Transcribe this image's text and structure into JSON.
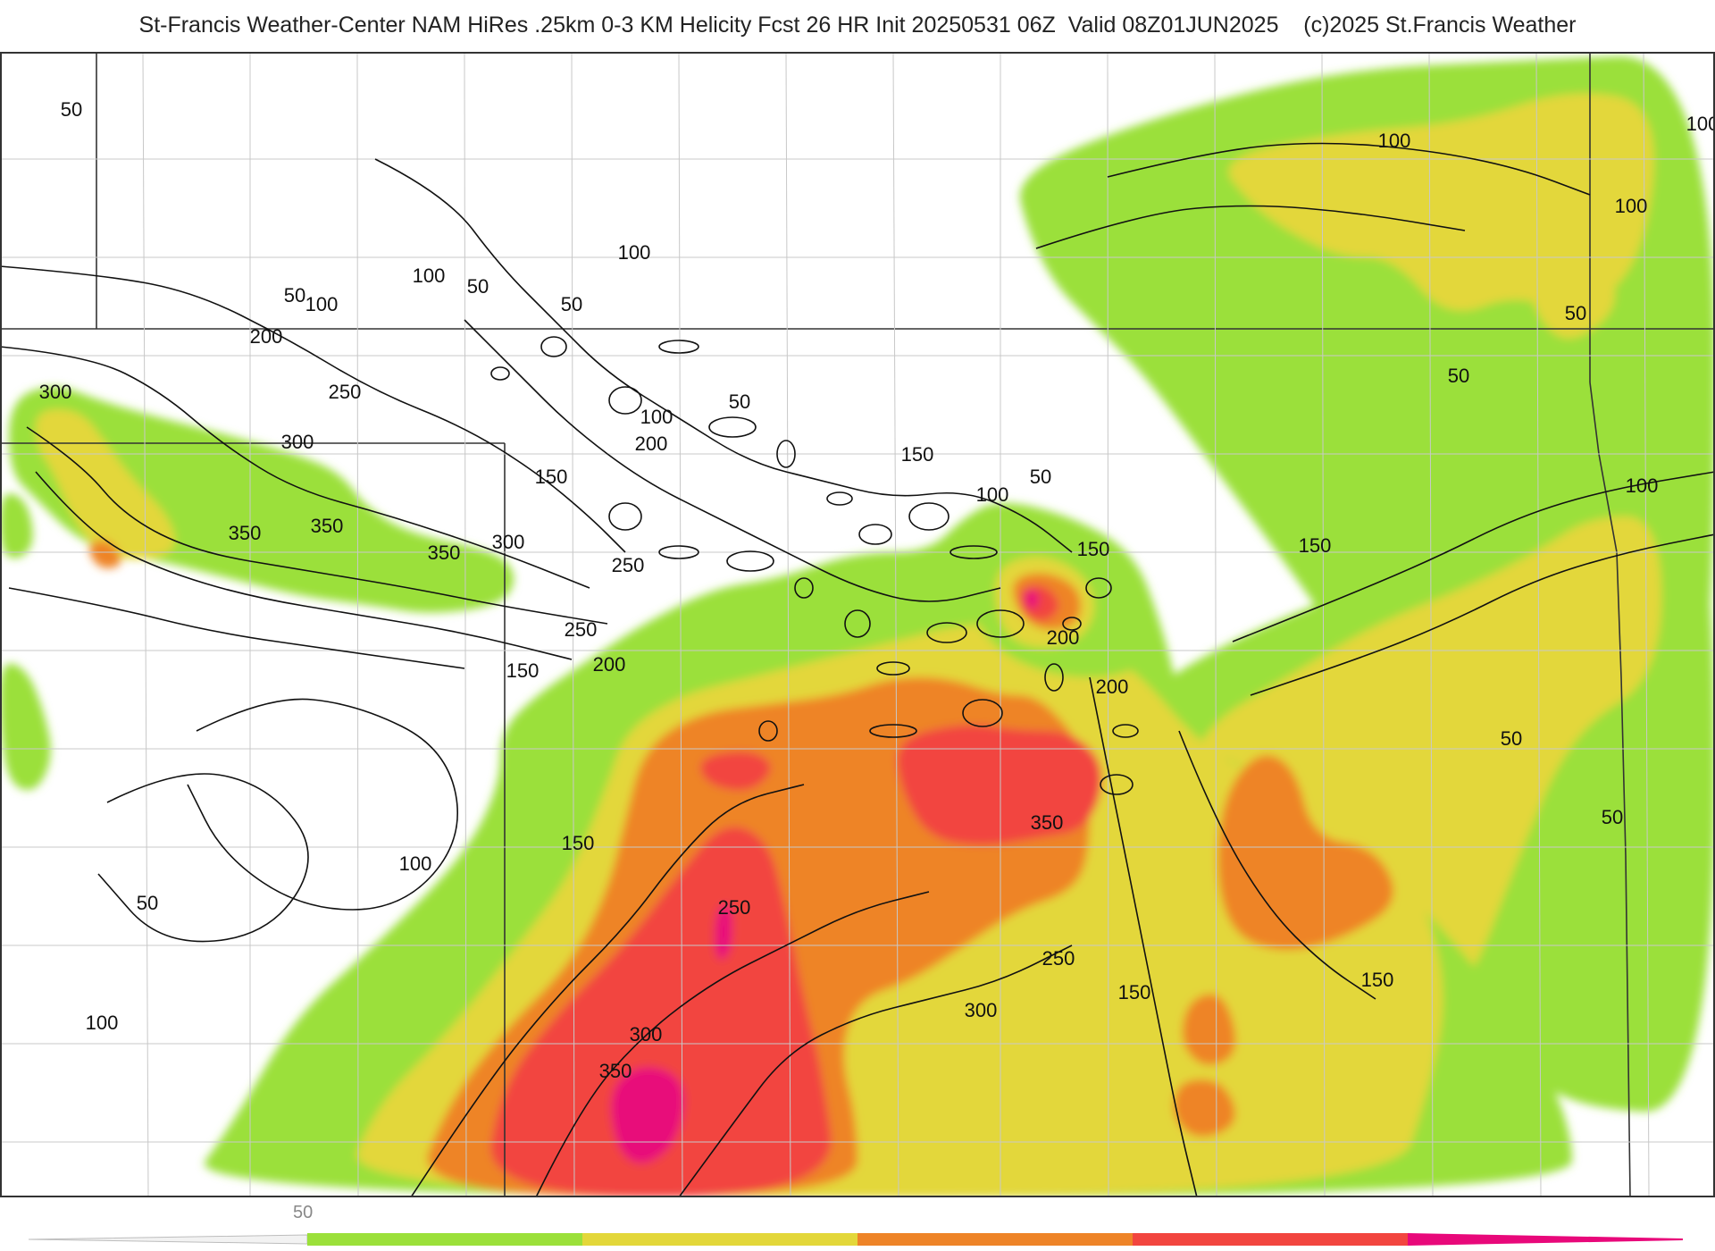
{
  "header": {
    "title": "St-Francis Weather-Center NAM HiRes .25km 0-3 KM Helicity Fcst 26 HR Init 20250531 06Z  Valid 08Z01JUN2025    (c)2025 St.Francis Weather"
  },
  "colors": {
    "c50": "#9be03a",
    "c100": "#e3d73a",
    "c150": "#ee8428",
    "c200": "#f2453f",
    "c250": "#e8087a",
    "contour": "#111111",
    "boundary": "#c8c8c8"
  },
  "contour_labels": [
    {
      "text": "50"
    },
    {
      "text": "50"
    },
    {
      "text": "100"
    },
    {
      "text": "100"
    },
    {
      "text": "50"
    },
    {
      "text": "100"
    },
    {
      "text": "50"
    },
    {
      "text": "200"
    },
    {
      "text": "250"
    },
    {
      "text": "300"
    },
    {
      "text": "300"
    },
    {
      "text": "350"
    },
    {
      "text": "350"
    },
    {
      "text": "350"
    },
    {
      "text": "300"
    },
    {
      "text": "150"
    },
    {
      "text": "100"
    },
    {
      "text": "200"
    },
    {
      "text": "50"
    },
    {
      "text": "150"
    },
    {
      "text": "100"
    },
    {
      "text": "50"
    },
    {
      "text": "250"
    },
    {
      "text": "250"
    },
    {
      "text": "200"
    },
    {
      "text": "150"
    },
    {
      "text": "150"
    },
    {
      "text": "200"
    },
    {
      "text": "200"
    },
    {
      "text": "350"
    },
    {
      "text": "150"
    },
    {
      "text": "100"
    },
    {
      "text": "50"
    },
    {
      "text": "100"
    },
    {
      "text": "250"
    },
    {
      "text": "300"
    },
    {
      "text": "350"
    },
    {
      "text": "250"
    },
    {
      "text": "150"
    },
    {
      "text": "300"
    },
    {
      "text": "150"
    },
    {
      "text": "100"
    },
    {
      "text": "100"
    },
    {
      "text": "100"
    },
    {
      "text": "50"
    },
    {
      "text": "50"
    },
    {
      "text": "100"
    },
    {
      "text": "50"
    },
    {
      "text": "50"
    },
    {
      "text": "150"
    }
  ],
  "legend": {
    "label": "50"
  }
}
